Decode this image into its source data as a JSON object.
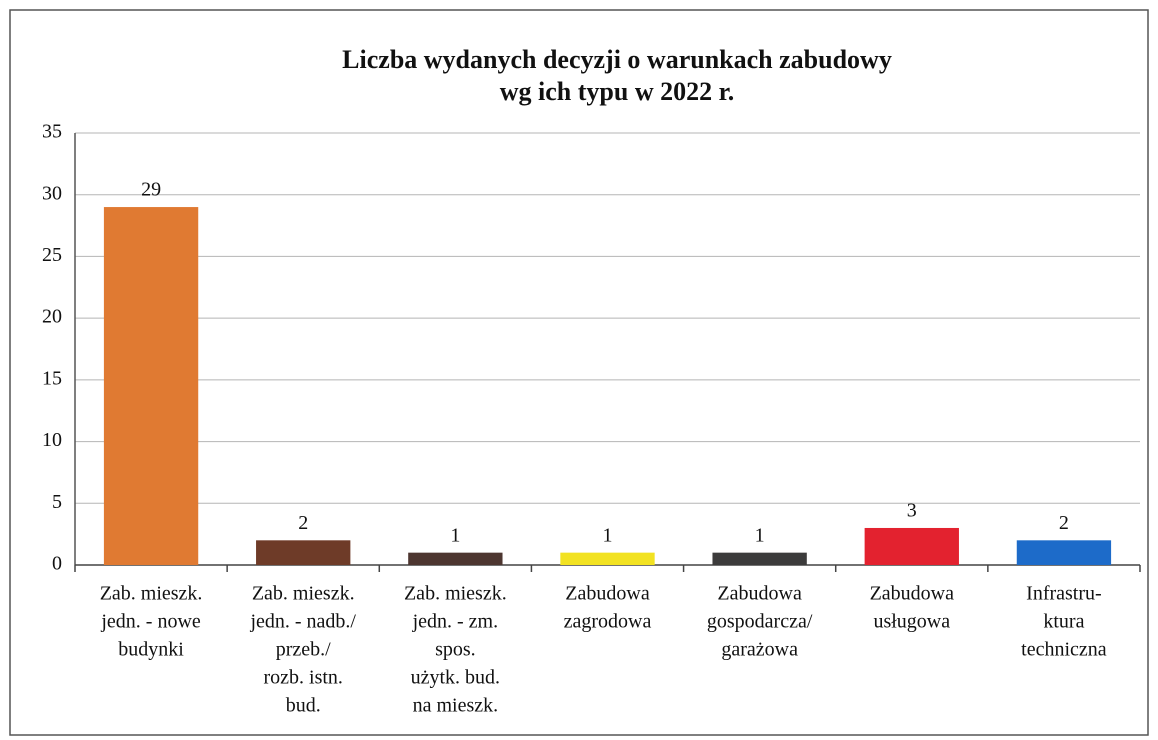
{
  "chart_data": {
    "type": "bar",
    "title": [
      "Liczba wydanych decyzji o warunkach zabudowy",
      "wg ich typu w 2022 r."
    ],
    "categories": [
      [
        "Zab. mieszk.",
        "jedn. - nowe",
        "budynki"
      ],
      [
        "Zab. mieszk.",
        "jedn. - nadb./",
        "przeb./",
        "rozb. istn.",
        "bud."
      ],
      [
        "Zab. mieszk.",
        "jedn. - zm.",
        "spos.",
        "użytk. bud.",
        "na mieszk."
      ],
      [
        "Zabudowa",
        "zagrodowa"
      ],
      [
        "Zabudowa",
        "gospodarcza/",
        "garażowa"
      ],
      [
        "Zabudowa",
        "usługowa"
      ],
      [
        "Infrastru-",
        "ktura",
        "techniczna"
      ]
    ],
    "values": [
      29,
      2,
      1,
      1,
      1,
      3,
      2
    ],
    "colors": [
      "#e07a32",
      "#6e3b28",
      "#4d3630",
      "#f2e222",
      "#3c3b3b",
      "#e3222f",
      "#1d6bc9"
    ],
    "ylim": [
      0,
      35
    ],
    "yticks": [
      0,
      5,
      10,
      15,
      20,
      25,
      30,
      35
    ],
    "grid": true
  }
}
